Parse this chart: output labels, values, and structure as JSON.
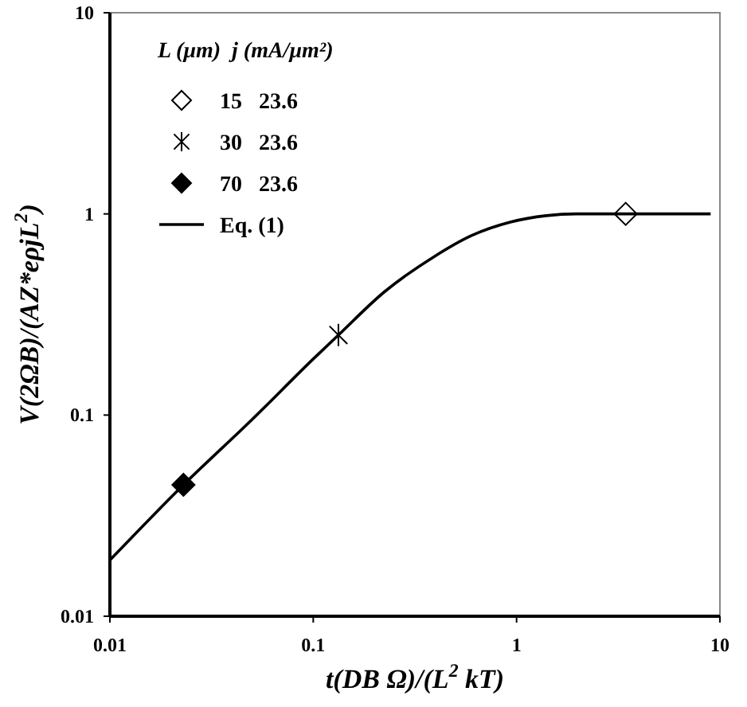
{
  "chart_data": {
    "type": "scatter",
    "xlabel": "t(DB Ω)/(L$^{2}$ kT)",
    "ylabel": "V(2ΩB)/(AZ*eρjL$^{2}$)",
    "legend_title": "L (μm)  j (mA/μm²)",
    "legend": "top left",
    "log": "xy",
    "xlim": [
      0.01,
      10
    ],
    "ylim": [
      0.01,
      10
    ],
    "xticks": [
      0.01,
      0.1,
      1,
      10
    ],
    "yticks": [
      0.01,
      0.1,
      1,
      10
    ],
    "grid": false,
    "series": [
      {
        "name": "15   23.6",
        "color": "#000000",
        "marker": "diamond",
        "colors": [
          "#ffffff"
        ],
        "x": [
          3.44
        ],
        "values": [
          1
        ]
      },
      {
        "name": "30   23.6",
        "color": "#000000",
        "marker": "cross",
        "x": [
          0.133
        ],
        "values": [
          0.25
        ]
      },
      {
        "name": "70   23.6",
        "color": "#000000",
        "marker": "diamond",
        "x": [
          0.023
        ],
        "values": [
          0.045
        ]
      },
      {
        "name": "Eq. (1)",
        "type": "line",
        "color": "#000000",
        "marker": "none",
        "line_style": "solid",
        "x": [
          0.01,
          0.023,
          0.05,
          0.1,
          0.133,
          0.224,
          0.39,
          0.6,
          0.93,
          1.4,
          1.97,
          9
        ],
        "values": [
          0.019,
          0.045,
          0.095,
          0.19,
          0.25,
          0.41,
          0.61,
          0.78,
          0.91,
          0.98,
          1,
          1
        ]
      }
    ]
  }
}
